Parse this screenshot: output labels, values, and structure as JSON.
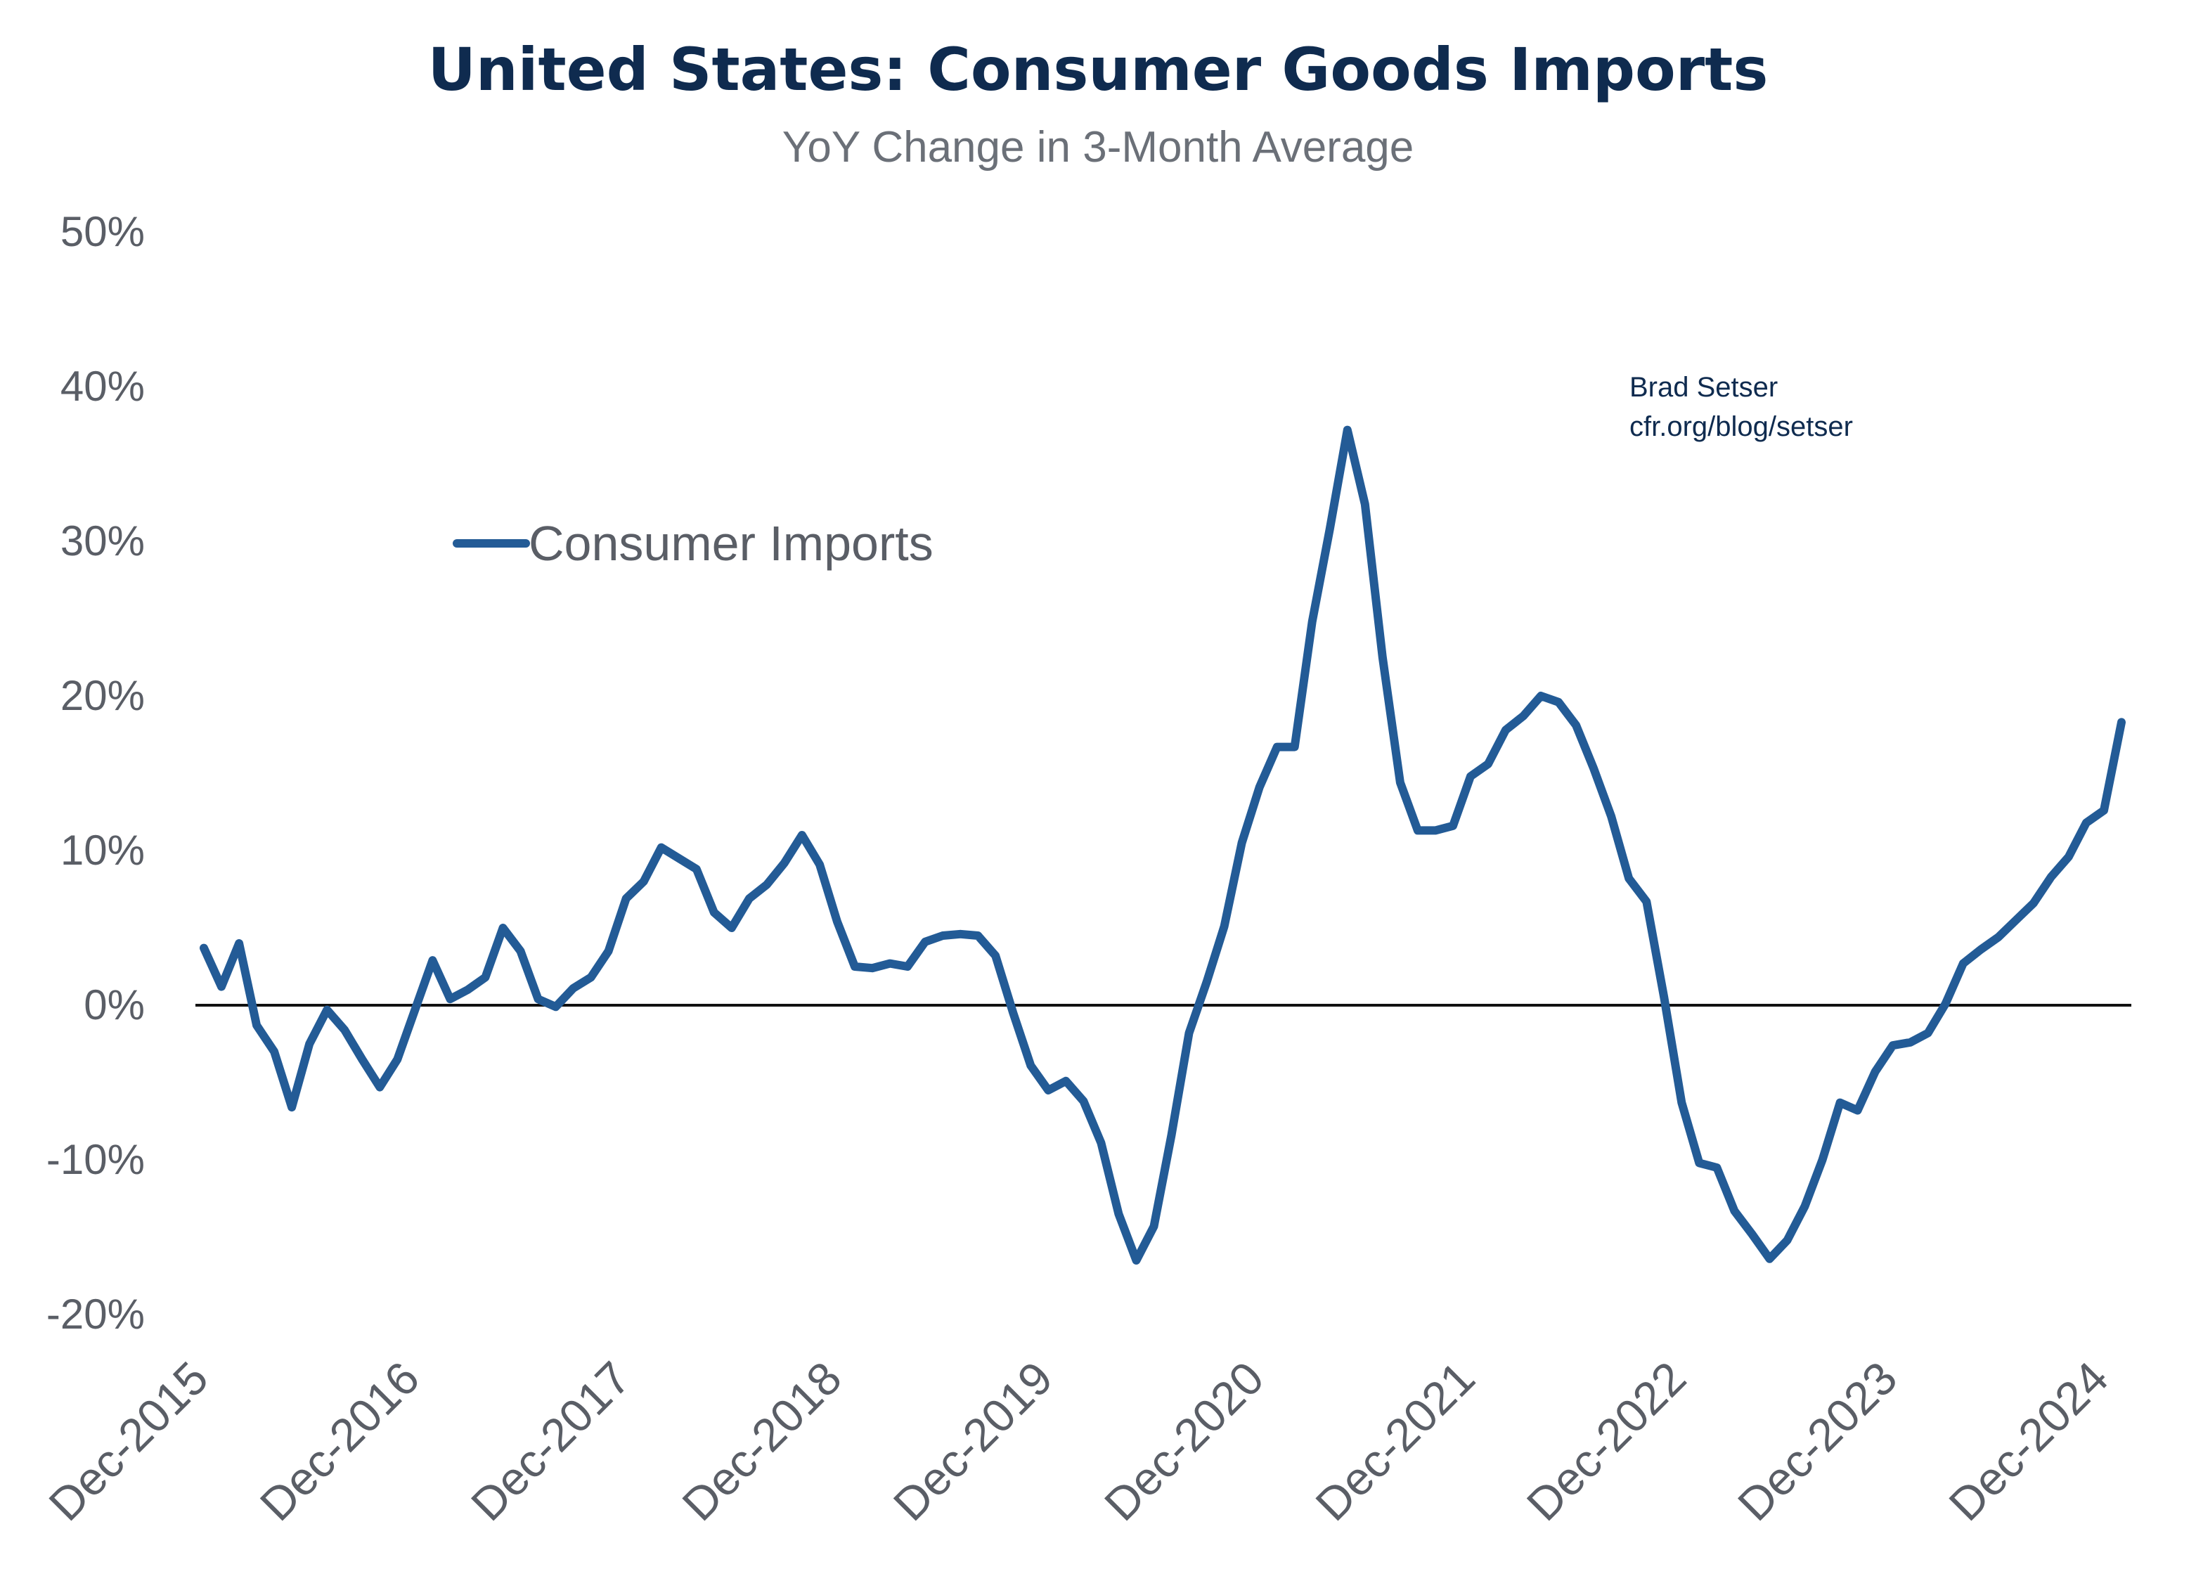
{
  "colors": {
    "series": "#235b96",
    "title": "#0f2b4f",
    "subtitle": "#6b7078",
    "axis_text": "#5a5e66",
    "zero_line": "#111111"
  },
  "chart_data": {
    "type": "line",
    "title": "United States: Consumer Goods Imports",
    "subtitle": "YoY Change in 3-Month Average",
    "xlabel": "",
    "ylabel": "",
    "ylim": [
      -20,
      50
    ],
    "y_ticks": [
      50,
      40,
      30,
      20,
      10,
      0,
      -10,
      -20
    ],
    "y_tick_labels": [
      "50%",
      "40%",
      "30%",
      "20%",
      "10%",
      "0%",
      "-10%",
      "-20%"
    ],
    "x_tick_labels": [
      "Dec-2015",
      "Dec-2016",
      "Dec-2017",
      "Dec-2018",
      "Dec-2019",
      "Dec-2020",
      "Dec-2021",
      "Dec-2022",
      "Dec-2023",
      "Dec-2024"
    ],
    "x_start": "2015-12",
    "x_end": "2024-12",
    "grid": false,
    "zero_line": true,
    "legend": {
      "position": "upper-left",
      "entries": [
        "Consumer Imports"
      ]
    },
    "annotations": [
      "Brad Setser",
      "cfr.org/blog/setser"
    ],
    "series": [
      {
        "name": "Consumer Imports",
        "points": [
          [
            "2015-12",
            3.7
          ],
          [
            "2016-01",
            1.2
          ],
          [
            "2016-02",
            4.0
          ],
          [
            "2016-03",
            -1.3
          ],
          [
            "2016-04",
            -3.0
          ],
          [
            "2016-05",
            -6.6
          ],
          [
            "2016-06",
            -2.5
          ],
          [
            "2016-07",
            -0.3
          ],
          [
            "2016-08",
            -1.6
          ],
          [
            "2016-09",
            -3.5
          ],
          [
            "2016-10",
            -5.3
          ],
          [
            "2016-11",
            -3.5
          ],
          [
            "2016-12",
            -0.3
          ],
          [
            "2017-01",
            2.9
          ],
          [
            "2017-02",
            0.4
          ],
          [
            "2017-03",
            1.0
          ],
          [
            "2017-04",
            1.8
          ],
          [
            "2017-05",
            5.0
          ],
          [
            "2017-06",
            3.5
          ],
          [
            "2017-07",
            0.4
          ],
          [
            "2017-08",
            -0.1
          ],
          [
            "2017-09",
            1.1
          ],
          [
            "2017-10",
            1.8
          ],
          [
            "2017-11",
            3.5
          ],
          [
            "2017-12",
            6.9
          ],
          [
            "2018-01",
            8.0
          ],
          [
            "2018-02",
            10.2
          ],
          [
            "2018-03",
            9.5
          ],
          [
            "2018-04",
            8.8
          ],
          [
            "2018-05",
            6.0
          ],
          [
            "2018-06",
            5.0
          ],
          [
            "2018-07",
            6.9
          ],
          [
            "2018-08",
            7.8
          ],
          [
            "2018-09",
            9.2
          ],
          [
            "2018-10",
            11.0
          ],
          [
            "2018-11",
            9.1
          ],
          [
            "2018-12",
            5.4
          ],
          [
            "2019-01",
            2.5
          ],
          [
            "2019-02",
            2.4
          ],
          [
            "2019-03",
            2.7
          ],
          [
            "2019-04",
            2.5
          ],
          [
            "2019-05",
            4.1
          ],
          [
            "2019-06",
            4.5
          ],
          [
            "2019-07",
            4.6
          ],
          [
            "2019-08",
            4.5
          ],
          [
            "2019-09",
            3.2
          ],
          [
            "2019-10",
            -0.5
          ],
          [
            "2019-11",
            -3.9
          ],
          [
            "2019-12",
            -5.5
          ],
          [
            "2020-01",
            -4.9
          ],
          [
            "2020-02",
            -6.2
          ],
          [
            "2020-03",
            -8.9
          ],
          [
            "2020-04",
            -13.5
          ],
          [
            "2020-05",
            -16.5
          ],
          [
            "2020-06",
            -14.3
          ],
          [
            "2020-07",
            -8.4
          ],
          [
            "2020-08",
            -1.8
          ],
          [
            "2020-09",
            1.5
          ],
          [
            "2020-10",
            5.1
          ],
          [
            "2020-11",
            10.5
          ],
          [
            "2020-12",
            14.1
          ],
          [
            "2021-01",
            16.7
          ],
          [
            "2021-02",
            16.7
          ],
          [
            "2021-03",
            24.8
          ],
          [
            "2021-04",
            30.8
          ],
          [
            "2021-05",
            37.2
          ],
          [
            "2021-06",
            32.4
          ],
          [
            "2021-07",
            22.5
          ],
          [
            "2021-08",
            14.4
          ],
          [
            "2021-09",
            11.3
          ],
          [
            "2021-10",
            11.3
          ],
          [
            "2021-11",
            11.6
          ],
          [
            "2021-12",
            14.8
          ],
          [
            "2022-01",
            15.6
          ],
          [
            "2022-02",
            17.8
          ],
          [
            "2022-03",
            18.7
          ],
          [
            "2022-04",
            20.0
          ],
          [
            "2022-05",
            19.6
          ],
          [
            "2022-06",
            18.1
          ],
          [
            "2022-07",
            15.3
          ],
          [
            "2022-08",
            12.2
          ],
          [
            "2022-09",
            8.2
          ],
          [
            "2022-10",
            6.7
          ],
          [
            "2022-11",
            0.5
          ],
          [
            "2022-12",
            -6.3
          ],
          [
            "2023-01",
            -10.2
          ],
          [
            "2023-02",
            -10.5
          ],
          [
            "2023-03",
            -13.3
          ],
          [
            "2023-04",
            -14.8
          ],
          [
            "2023-05",
            -16.4
          ],
          [
            "2023-06",
            -15.2
          ],
          [
            "2023-07",
            -13.0
          ],
          [
            "2023-08",
            -10.0
          ],
          [
            "2023-09",
            -6.3
          ],
          [
            "2023-10",
            -6.8
          ],
          [
            "2023-11",
            -4.3
          ],
          [
            "2023-12",
            -2.6
          ],
          [
            "2024-01",
            -2.4
          ],
          [
            "2024-02",
            -1.8
          ],
          [
            "2024-03",
            0.1
          ],
          [
            "2024-04",
            2.7
          ],
          [
            "2024-05",
            3.6
          ],
          [
            "2024-06",
            4.4
          ],
          [
            "2024-07",
            5.5
          ],
          [
            "2024-08",
            6.6
          ],
          [
            "2024-09",
            8.3
          ],
          [
            "2024-10",
            9.6
          ],
          [
            "2024-11",
            11.8
          ],
          [
            "2024-12",
            12.6
          ],
          [
            "2025-01",
            18.3
          ]
        ]
      }
    ]
  }
}
